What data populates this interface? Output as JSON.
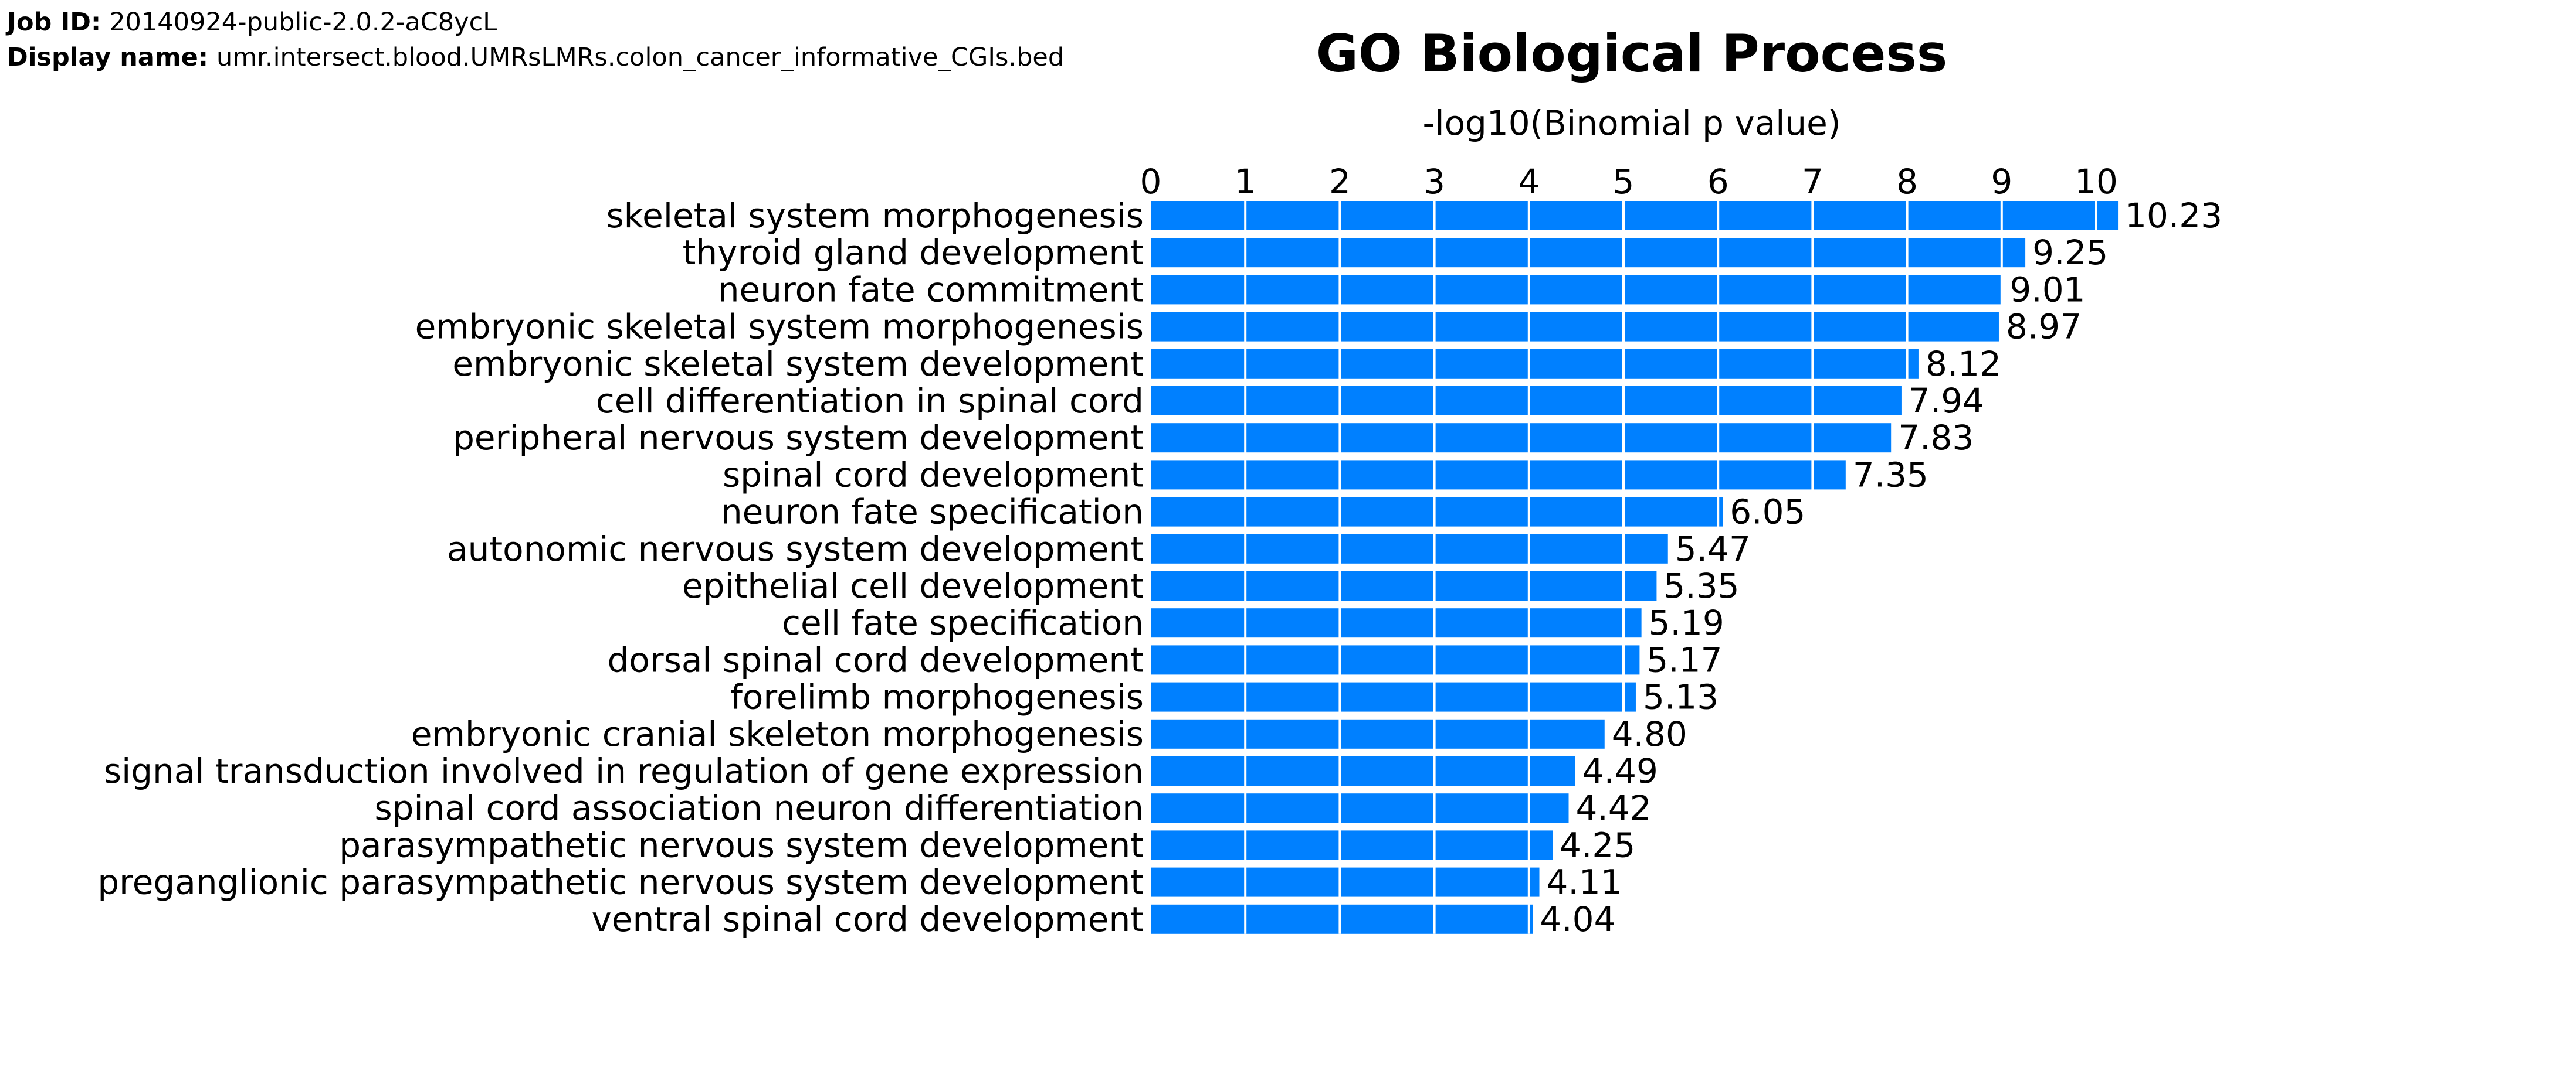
{
  "job": {
    "id_label": "Job ID:",
    "id_value": "20140924-public-2.0.2-aC8ycL",
    "display_label": "Display name:",
    "display_value": "umr.intersect.blood.UMRsLMRs.colon_cancer_informative_CGIs.bed"
  },
  "chart_data": {
    "type": "bar",
    "orientation": "horizontal",
    "title": "GO Biological Process",
    "xlabel": "-log10(Binomial p value)",
    "xaxis_position": "top",
    "xlim": [
      0,
      10.23
    ],
    "xticks": [
      0,
      1,
      2,
      3,
      4,
      5,
      6,
      7,
      8,
      9,
      10
    ],
    "grid": "vertical white lines over bars",
    "bar_color": "#0080ff",
    "categories": [
      "skeletal system morphogenesis",
      "thyroid gland development",
      "neuron fate commitment",
      "embryonic skeletal system morphogenesis",
      "embryonic skeletal system development",
      "cell differentiation in spinal cord",
      "peripheral nervous system development",
      "spinal cord development",
      "neuron fate specification",
      "autonomic nervous system development",
      "epithelial cell development",
      "cell fate specification",
      "dorsal spinal cord development",
      "forelimb morphogenesis",
      "embryonic cranial skeleton morphogenesis",
      "signal transduction involved in regulation of gene expression",
      "spinal cord association neuron differentiation",
      "parasympathetic nervous system development",
      "preganglionic parasympathetic nervous system development",
      "ventral spinal cord development"
    ],
    "values": [
      10.23,
      9.25,
      9.01,
      8.97,
      8.12,
      7.94,
      7.83,
      7.35,
      6.05,
      5.47,
      5.35,
      5.19,
      5.17,
      5.13,
      4.8,
      4.49,
      4.42,
      4.25,
      4.11,
      4.04
    ],
    "value_labels": [
      "10.23",
      "9.25",
      "9.01",
      "8.97",
      "8.12",
      "7.94",
      "7.83",
      "7.35",
      "6.05",
      "5.47",
      "5.35",
      "5.19",
      "5.17",
      "5.13",
      "4.80",
      "4.49",
      "4.42",
      "4.25",
      "4.11",
      "4.04"
    ]
  }
}
